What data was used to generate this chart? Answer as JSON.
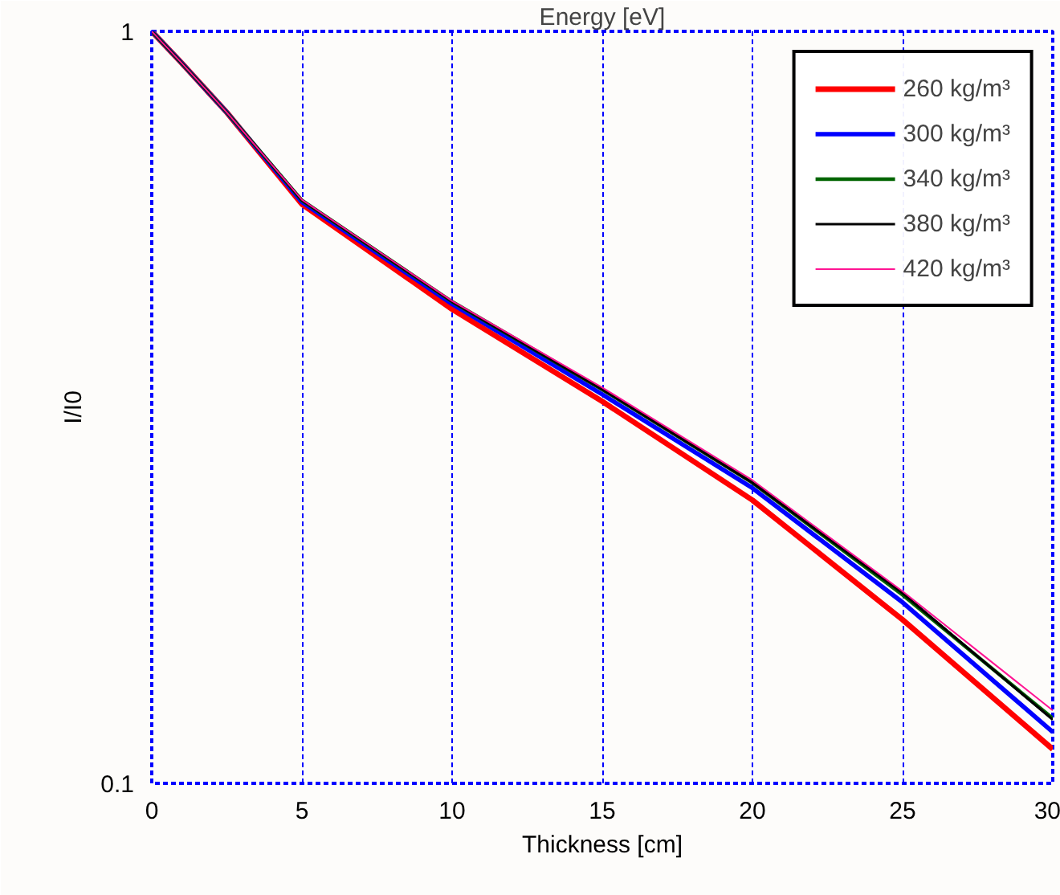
{
  "chart_data": {
    "type": "line",
    "title": "Energy [eV]",
    "xlabel": "Thickness [cm]",
    "ylabel": "I/I0",
    "log": "y",
    "grid": "x",
    "legend": "top right",
    "xlim": [
      0,
      30
    ],
    "ylim": [
      0.1,
      1
    ],
    "xticks": [
      0,
      5,
      10,
      15,
      20,
      25,
      30
    ],
    "yticks": [
      0.1,
      1
    ],
    "x": [
      0,
      1,
      2.5,
      5,
      10,
      15,
      20,
      25,
      30
    ],
    "series": [
      {
        "name": "260 kg/m³",
        "color": "#ff0000",
        "values": [
          1,
          0.907,
          0.78,
          0.589,
          0.427,
          0.322,
          0.238,
          0.165,
          0.111
        ]
      },
      {
        "name": "300 kg/m³",
        "color": "#0000ff",
        "values": [
          1,
          0.907,
          0.78,
          0.593,
          0.434,
          0.329,
          0.247,
          0.174,
          0.117
        ]
      },
      {
        "name": "340 kg/m³",
        "color": "#006400",
        "values": [
          1,
          0.907,
          0.78,
          0.596,
          0.437,
          0.334,
          0.251,
          0.178,
          0.122
        ]
      },
      {
        "name": "380 kg/m³",
        "color": "#000000",
        "values": [
          1,
          0.907,
          0.78,
          0.596,
          0.437,
          0.334,
          0.251,
          0.179,
          0.1215
        ]
      },
      {
        "name": "420 kg/m³",
        "color": "#ff1493",
        "values": [
          1,
          0.907,
          0.78,
          0.597,
          0.438,
          0.336,
          0.253,
          0.18,
          0.125
        ]
      }
    ]
  }
}
